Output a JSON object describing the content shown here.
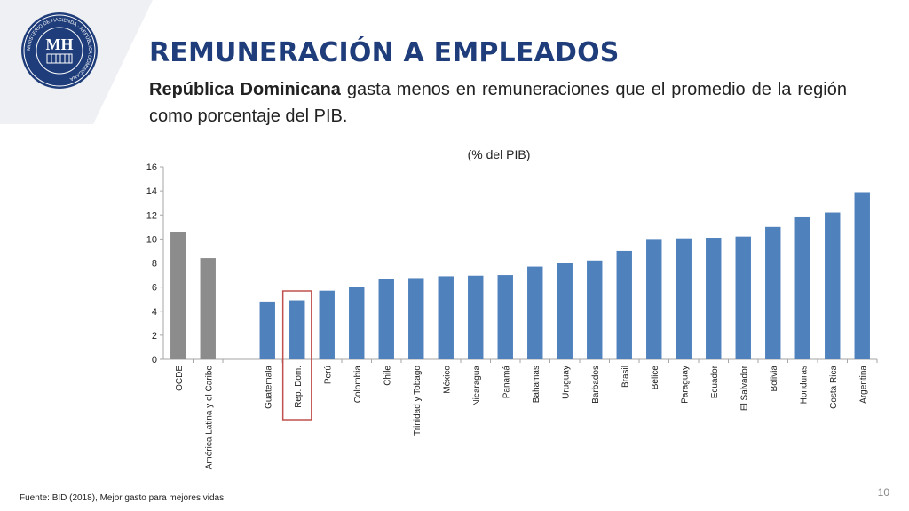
{
  "header": {
    "title": "REMUNERACIÓN A EMPLEADOS",
    "subtitle_bold": "República Dominicana",
    "subtitle_rest": " gasta menos en remuneraciones que el promedio de la región como porcentaje del PIB."
  },
  "logo": {
    "ring_text": "MINISTERIO DE HACIENDA · REPÚBLICA DOMINICANA",
    "monogram": "MH"
  },
  "chart_data": {
    "type": "bar",
    "title": "(% del PIB)",
    "xlabel": "",
    "ylabel": "",
    "ylim": [
      0,
      16
    ],
    "yticks": [
      "0",
      "2",
      "4",
      "6",
      "8",
      "10",
      "12",
      "14",
      "16"
    ],
    "categories": [
      "OCDE",
      "América Latina y el Caribe",
      "Guatemala",
      "Rep. Dom.",
      "Perú",
      "Colombia",
      "Chile",
      "Trinidad y Tobago",
      "México",
      "Nicaragua",
      "Panamá",
      "Bahamas",
      "Uruguay",
      "Barbados",
      "Brasil",
      "Belice",
      "Paraguay",
      "Ecuador",
      "El Salvador",
      "Bolivia",
      "Honduras",
      "Costa Rica",
      "Argentina"
    ],
    "values": [
      10.6,
      8.4,
      4.8,
      4.9,
      5.7,
      6.0,
      6.7,
      6.75,
      6.9,
      6.95,
      7.0,
      7.7,
      8.0,
      8.2,
      9.0,
      10.0,
      10.05,
      10.1,
      10.2,
      11.0,
      11.8,
      12.2,
      13.9
    ],
    "group_gap_after_index": 1,
    "highlight_category": "Rep. Dom.",
    "colors": {
      "benchmark": "#8c8c8c",
      "country": "#4f81bd",
      "highlight_box": "#c0504d"
    },
    "grid": false,
    "legend": "none"
  },
  "footer": {
    "source": "Fuente: BID (2018), Mejor gasto para mejores vidas.",
    "page": "10"
  }
}
